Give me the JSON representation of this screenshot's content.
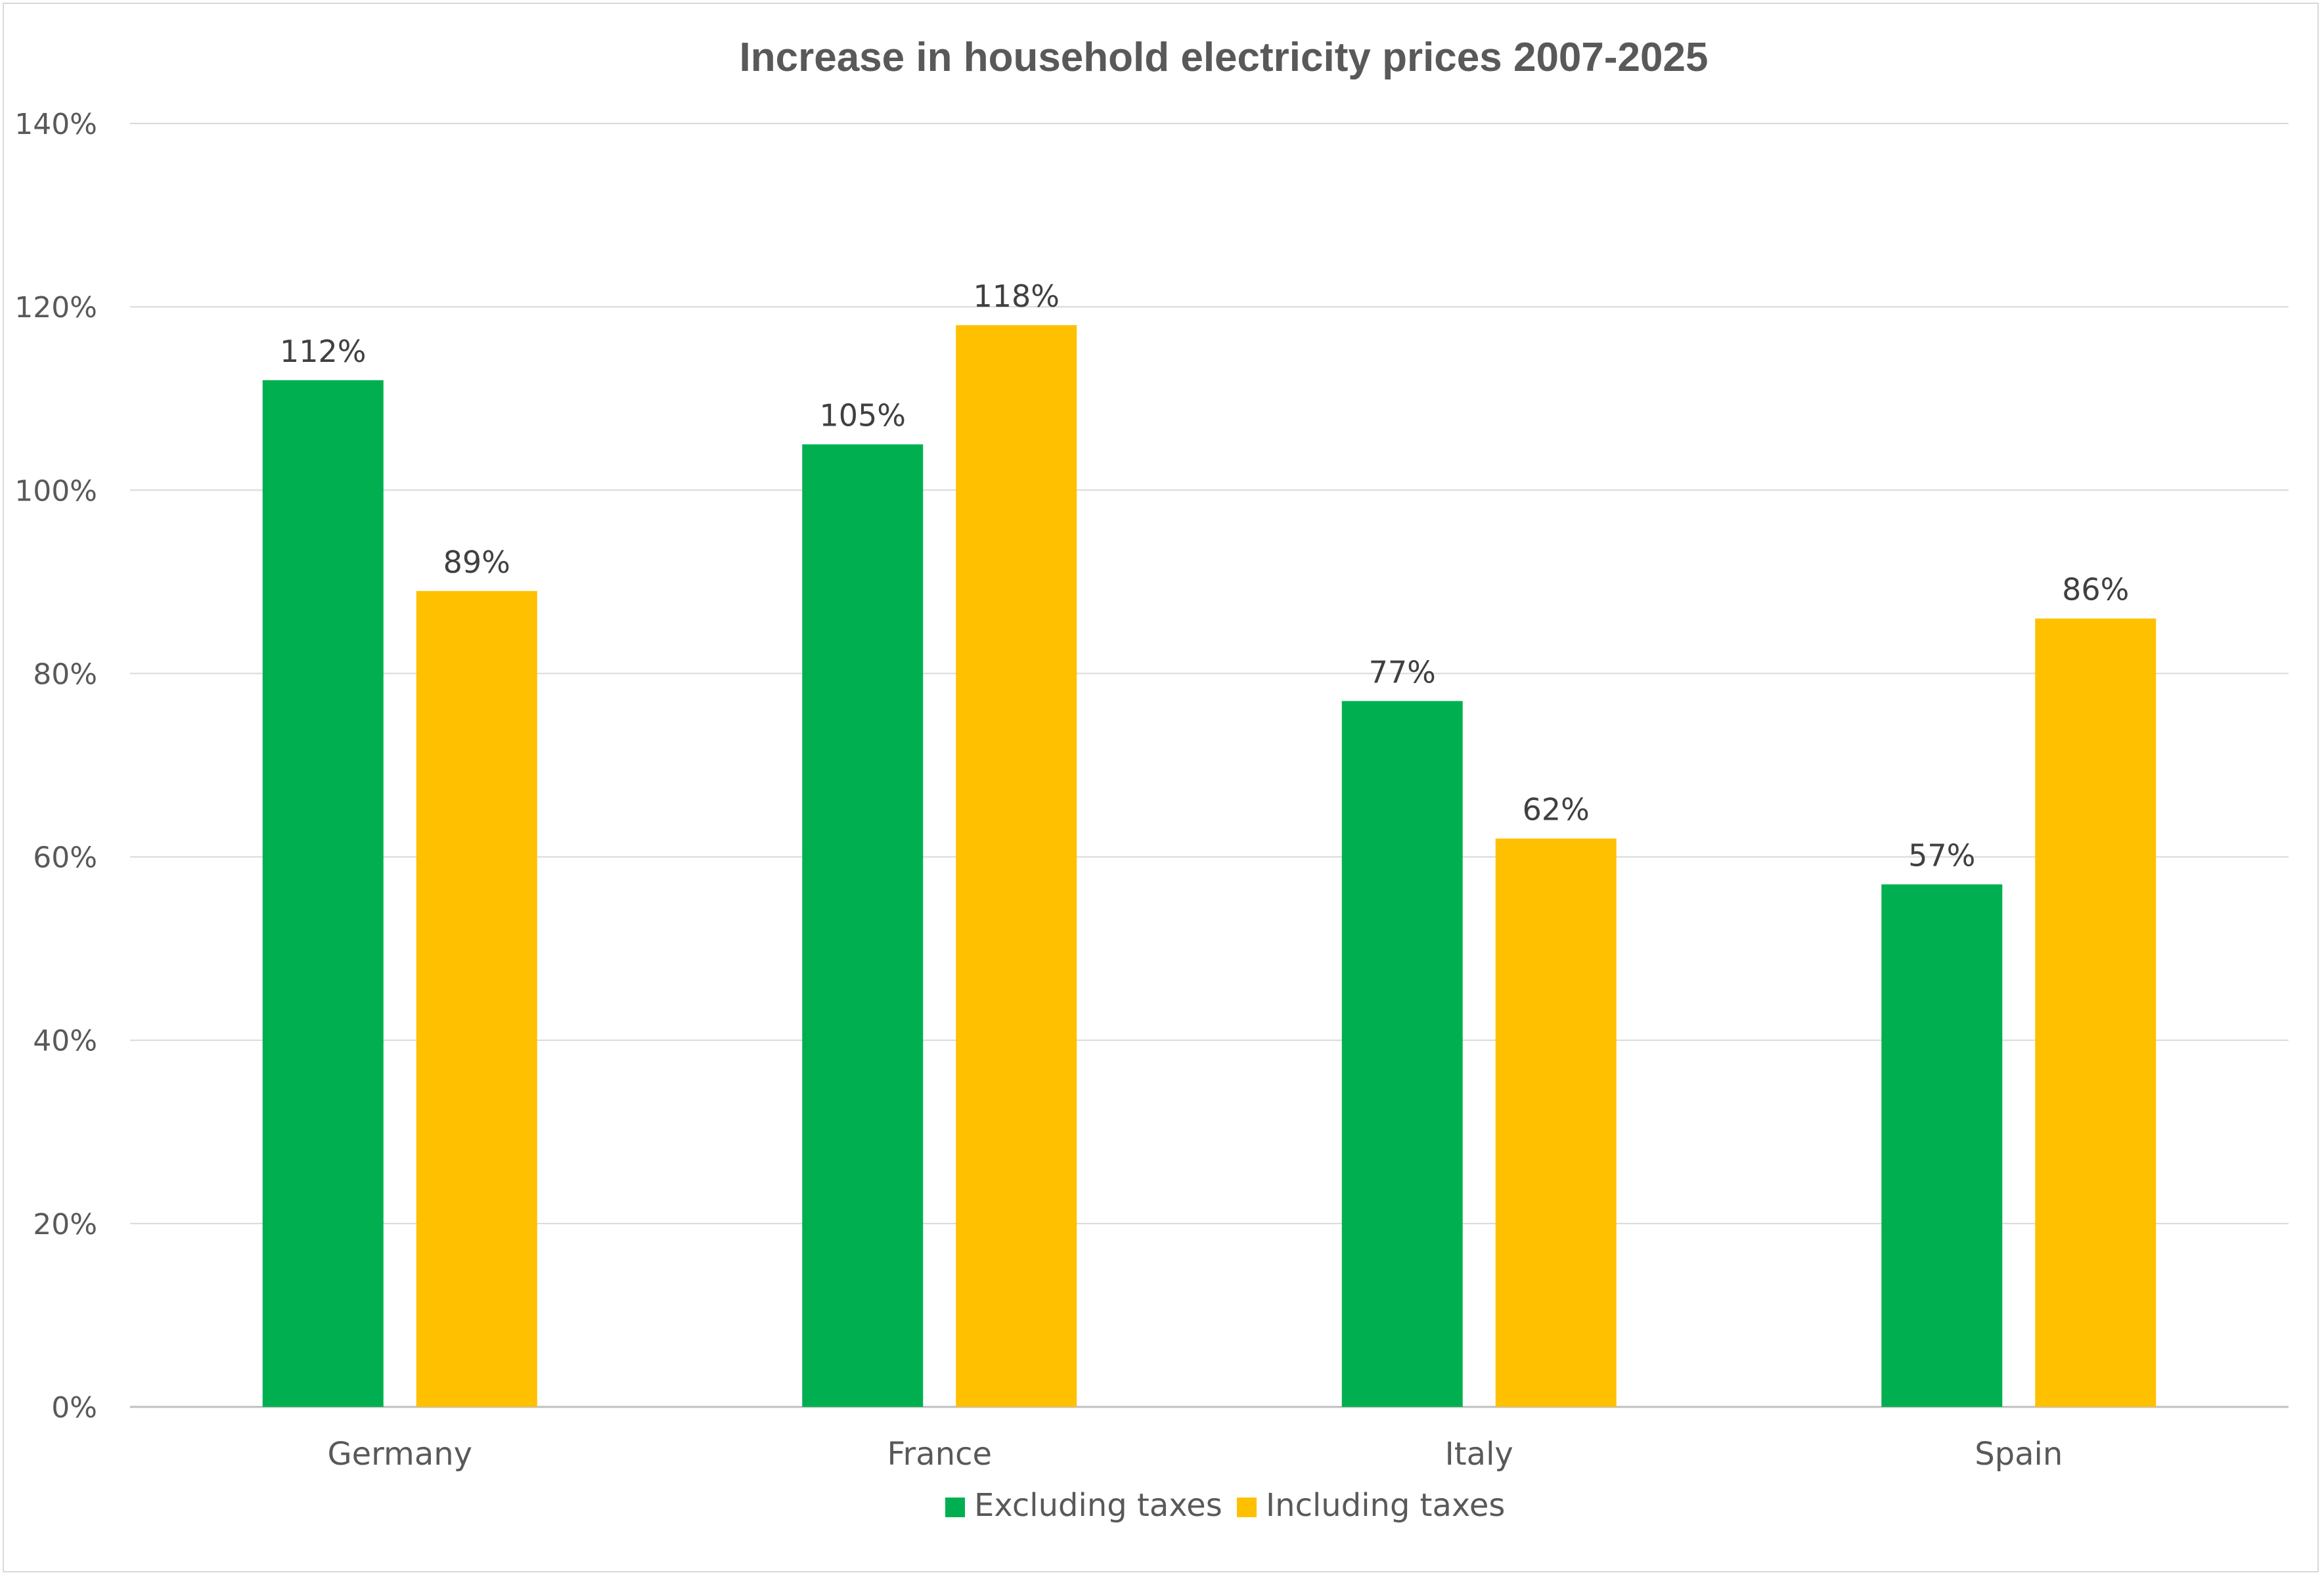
{
  "chart_data": {
    "type": "bar",
    "title": "Increase in household electricity prices 2007-2025",
    "xlabel": "",
    "ylabel": "",
    "categories": [
      "Germany",
      "France",
      "Italy",
      "Spain"
    ],
    "series": [
      {
        "name": "Excluding taxes",
        "color": "#00b050",
        "values": [
          112,
          105,
          77,
          57
        ],
        "labels": [
          "112%",
          "105%",
          "77%",
          "57%"
        ]
      },
      {
        "name": "Including taxes",
        "color": "#ffc000",
        "values": [
          89,
          118,
          62,
          86
        ],
        "labels": [
          "89%",
          "118%",
          "62%",
          "86%"
        ]
      }
    ],
    "ylim": [
      0,
      140
    ],
    "yticks": [
      0,
      20,
      40,
      60,
      80,
      100,
      120,
      140
    ],
    "ytick_labels": [
      "0%",
      "20%",
      "40%",
      "60%",
      "80%",
      "100%",
      "120%",
      "140%"
    ],
    "grid": true,
    "legend_position": "bottom"
  }
}
